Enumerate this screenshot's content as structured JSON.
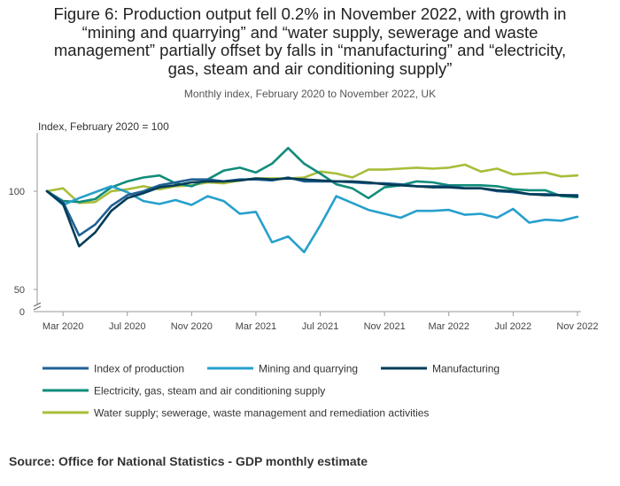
{
  "header": {
    "title_lines": [
      "Figure 6: Production output fell 0.2% in November 2022, with growth in",
      "“mining and quarrying” and “water supply, sewerage and waste",
      "management” partially offset by falls in “manufacturing” and “electricity,",
      "gas, steam and air conditioning supply”"
    ],
    "subtitle": "Monthly index, February 2020 to November 2022, UK"
  },
  "source": "Source: Office for National Statistics - GDP monthly estimate",
  "chart_data": {
    "type": "line",
    "ylabel": "Index, February 2020 = 100",
    "xlim": [
      "2020-02",
      "2022-11"
    ],
    "ylim": [
      0,
      130
    ],
    "axis_break": [
      0,
      50
    ],
    "y_ticks": [
      "0",
      "50",
      "100"
    ],
    "x_tick_labels": [
      "Mar 2020",
      "Jul 2020",
      "Nov 2020",
      "Mar 2021",
      "Jul 2021",
      "Nov 2021",
      "Mar 2022",
      "Jul 2022",
      "Nov 2022"
    ],
    "x_tick_months": [
      "2020-03",
      "2020-07",
      "2020-11",
      "2021-03",
      "2021-07",
      "2021-11",
      "2022-03",
      "2022-07",
      "2022-11"
    ],
    "grid": false,
    "legend_position": "bottom",
    "x": [
      "2020-02",
      "2020-03",
      "2020-04",
      "2020-05",
      "2020-06",
      "2020-07",
      "2020-08",
      "2020-09",
      "2020-10",
      "2020-11",
      "2020-12",
      "2021-01",
      "2021-02",
      "2021-03",
      "2021-04",
      "2021-05",
      "2021-06",
      "2021-07",
      "2021-08",
      "2021-09",
      "2021-10",
      "2021-11",
      "2021-12",
      "2022-01",
      "2022-02",
      "2022-03",
      "2022-04",
      "2022-05",
      "2022-06",
      "2022-07",
      "2022-08",
      "2022-09",
      "2022-10",
      "2022-11"
    ],
    "series": [
      {
        "name": "Index of production",
        "color": "#206095",
        "values": [
          100,
          94.5,
          77.5,
          83,
          92.5,
          98,
          100,
          103,
          104.5,
          106,
          106,
          105,
          106,
          106,
          105.5,
          107,
          105,
          105,
          105,
          104.5,
          104,
          104,
          103.5,
          102.5,
          102.5,
          102.5,
          101.5,
          101.5,
          100,
          99.5,
          98.5,
          98.5,
          98,
          98
        ]
      },
      {
        "name": "Mining and quarrying",
        "color": "#27a0cc",
        "values": [
          100,
          93,
          96.5,
          99.5,
          102.5,
          99.5,
          95,
          93.5,
          95.5,
          93,
          97.5,
          95,
          88.5,
          89.5,
          74,
          77,
          69,
          82.5,
          97.5,
          94,
          90.5,
          88.5,
          86.5,
          90,
          90,
          90.5,
          88,
          88.5,
          86.5,
          91,
          84,
          85.5,
          85,
          87
        ]
      },
      {
        "name": "Manufacturing",
        "color": "#003c57",
        "values": [
          100,
          93.5,
          72,
          79,
          90,
          96.5,
          99,
          102,
          103,
          104.5,
          105,
          105,
          105.5,
          106.5,
          106,
          106.5,
          106,
          105.5,
          105,
          105,
          104.5,
          103.5,
          103,
          102.5,
          102,
          102,
          101.5,
          101.5,
          100.5,
          100,
          98.5,
          98,
          98,
          97.5
        ]
      },
      {
        "name": "Electricity, gas, steam and air conditioning supply",
        "color": "#118c7b",
        "values": [
          100,
          95,
          94.5,
          96,
          102,
          105,
          107,
          108,
          104,
          102.5,
          106,
          110.5,
          112,
          109.5,
          114,
          122,
          114,
          109,
          103.5,
          101.5,
          96.5,
          102,
          103,
          105,
          104.5,
          103,
          103,
          103,
          102.5,
          101,
          100.5,
          100.5,
          97.5,
          97
        ]
      },
      {
        "name": "Water supply; sewerage, waste management and remediation activities",
        "color": "#a8bd3a",
        "values": [
          100,
          101.5,
          94,
          94.5,
          100,
          101,
          102.5,
          101,
          102.5,
          103,
          104.5,
          104,
          105.5,
          106.5,
          106.5,
          106.5,
          107,
          110,
          109,
          107,
          111,
          111,
          111.5,
          112,
          111.5,
          112,
          113.5,
          110,
          111.5,
          108.5,
          109,
          109.5,
          107.5,
          108
        ]
      }
    ]
  }
}
